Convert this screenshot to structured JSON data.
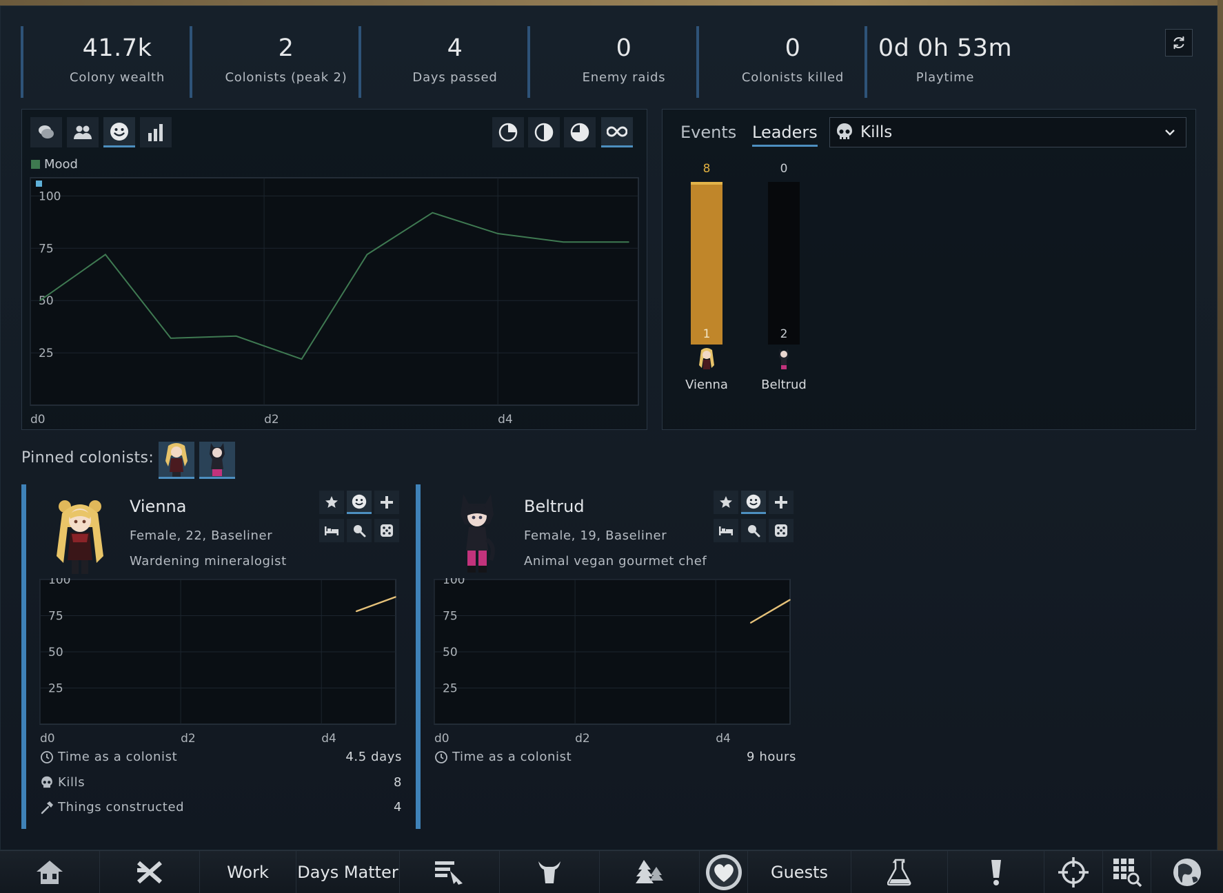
{
  "stats": [
    {
      "value": "41.7k",
      "label": "Colony wealth"
    },
    {
      "value": "2",
      "label": "Colonists (peak 2)"
    },
    {
      "value": "4",
      "label": "Days passed"
    },
    {
      "value": "0",
      "label": "Enemy raids"
    },
    {
      "value": "0",
      "label": "Colonists killed"
    },
    {
      "value": "0d 0h 53m",
      "label": "Playtime"
    }
  ],
  "chart_tabs": [
    "social-icon",
    "people-icon",
    "mood-icon",
    "bar-chart-icon"
  ],
  "range_tabs": [
    "quarter-icon",
    "half-icon",
    "three-quarter-icon",
    "infinity-icon"
  ],
  "main_chart": {
    "legend": "Mood",
    "legend_color": "#3e7a50",
    "line_color": "#3f7a52"
  },
  "chart_data": [
    {
      "type": "line",
      "series": [
        {
          "name": "Mood",
          "x": [
            0,
            0.5,
            1,
            1.5,
            2,
            2.5,
            3,
            3.5,
            4,
            4.5
          ],
          "values": [
            50,
            72,
            32,
            33,
            22,
            72,
            92,
            82,
            78,
            78
          ]
        }
      ],
      "ylim": [
        0,
        100
      ],
      "yticks": [
        "100",
        "75",
        "50",
        "25"
      ],
      "xticks": [
        "d0",
        "d2",
        "d4"
      ],
      "xlim": [
        0,
        4.5
      ],
      "grid": true
    },
    {
      "type": "bar",
      "categories": [
        "Vienna",
        "Beltrud"
      ],
      "values": [
        8,
        0
      ],
      "rank_labels": [
        "1",
        "2"
      ],
      "title": "Kills"
    },
    {
      "type": "line",
      "series": [
        {
          "name": "Vienna",
          "x": [
            4,
            4.5
          ],
          "values": [
            78,
            88
          ]
        }
      ],
      "ylim": [
        0,
        100
      ],
      "yticks": [
        "100",
        "75",
        "50",
        "25"
      ],
      "xticks": [
        "d0",
        "d2",
        "d4"
      ],
      "xlim": [
        0,
        4.5
      ]
    },
    {
      "type": "line",
      "series": [
        {
          "name": "Beltrud",
          "x": [
            4,
            4.5
          ],
          "values": [
            70,
            86
          ]
        }
      ],
      "ylim": [
        0,
        100
      ],
      "yticks": [
        "100",
        "75",
        "50",
        "25"
      ],
      "xticks": [
        "d0",
        "d2",
        "d4"
      ],
      "xlim": [
        0,
        4.5
      ]
    }
  ],
  "leaders": {
    "tabs": {
      "events": "Events",
      "leaders": "Leaders"
    },
    "dropdown": "Kills",
    "bar_color": "#c0862a",
    "bar_top_color": "#e2b34a",
    "top_value_color": "#e0b040"
  },
  "pinned_label": "Pinned colonists:",
  "colonists": [
    {
      "name": "Vienna",
      "info": "Female, 22, Baseliner",
      "job": "Wardening mineralogist",
      "rows": [
        {
          "icon": "clock-icon",
          "label": "Time as a colonist",
          "value": "4.5 days"
        },
        {
          "icon": "skull-icon",
          "label": "Kills",
          "value": "8"
        },
        {
          "icon": "hammer-icon",
          "label": "Things constructed",
          "value": "4"
        }
      ]
    },
    {
      "name": "Beltrud",
      "info": "Female, 19, Baseliner",
      "job": "Animal vegan gourmet chef",
      "rows": [
        {
          "icon": "clock-icon",
          "label": "Time as a colonist",
          "value": "9 hours"
        }
      ]
    }
  ],
  "mini_line_color": "#e6c27a",
  "bottom_bar": [
    {
      "icon": "home-icon"
    },
    {
      "icon": "architect-icon"
    },
    {
      "label": "Work"
    },
    {
      "label": "Days Matter"
    },
    {
      "icon": "schedule-icon"
    },
    {
      "icon": "animals-icon"
    },
    {
      "icon": "wildlife-icon"
    },
    {
      "icon": "heart-icon"
    },
    {
      "label": "Guests"
    },
    {
      "icon": "research-icon"
    },
    {
      "icon": "alert-icon"
    },
    {
      "icon": "crosshair-icon"
    },
    {
      "icon": "grid-search-icon"
    },
    {
      "icon": "world-icon"
    }
  ]
}
